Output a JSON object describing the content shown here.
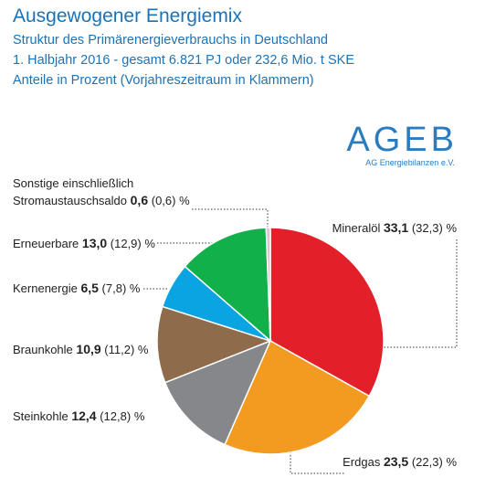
{
  "chart_data": {
    "type": "pie",
    "title": "Ausgewogener Energiemix",
    "subtitle": [
      "Struktur des Primärenergieverbrauchs in Deutschland",
      "1. Halbjahr 2016 - gesamt 6.821 PJ oder 232,6 Mio. t SKE",
      "Anteile in Prozent (Vorjahreszeitraum in Klammern)"
    ],
    "logo": {
      "title": "AGEB",
      "subtitle": "AG Energiebilanzen e.V."
    },
    "unit": "%",
    "categories": [
      "Mineralöl",
      "Erdgas",
      "Steinkohle",
      "Braunkohle",
      "Kernenergie",
      "Erneuerbare",
      "Sonstige einschließlich Stromaustauschsaldo"
    ],
    "values": [
      33.1,
      23.5,
      12.4,
      10.9,
      6.5,
      13.0,
      0.6
    ],
    "value_labels": [
      "33,1",
      "23,5",
      "12,4",
      "10,9",
      "6,5",
      "13,0",
      "0,6"
    ],
    "previous_values": [
      32.3,
      22.3,
      12.8,
      11.2,
      7.8,
      12.9,
      0.6
    ],
    "previous_value_labels": [
      "(32,3)",
      "(22,3)",
      "(12,8)",
      "(11,2)",
      "(7,8)",
      "(12,9)",
      "(0,6)"
    ],
    "colors": [
      "#e3202a",
      "#f39a20",
      "#85878a",
      "#8d6b4b",
      "#0ba4e2",
      "#12b04b",
      "#dcc4ca"
    ]
  }
}
